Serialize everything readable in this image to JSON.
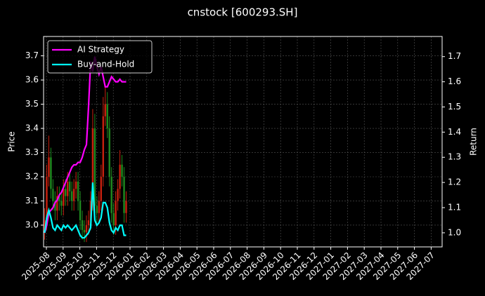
{
  "chart_data": {
    "type": "candlestick",
    "title": "cnstock [600293.SH]",
    "ylabel": "Price",
    "y2label": "Return",
    "ylim": [
      2.91,
      3.78
    ],
    "yticks": [
      {
        "value": 3.0,
        "label": "3.0"
      },
      3.1,
      3.2,
      3.3,
      3.4,
      3.5,
      3.6,
      3.7
    ],
    "y2lim": [
      0.944,
      1.78
    ],
    "y2ticks": [
      {
        "value": 1.0,
        "label": "1.0"
      },
      1.1,
      1.2,
      1.3,
      1.4,
      1.5,
      1.6,
      1.7
    ],
    "xticks": [
      "2025-08",
      "2025-09",
      "2025-10",
      "2025-11",
      "2025-12",
      "2026-01",
      "2026-02",
      "2026-03",
      "2026-04",
      "2026-05",
      "2026-06",
      "2026-07",
      "2026-08",
      "2026-09",
      "2026-10",
      "2026-11",
      "2026-12",
      "2027-01",
      "2027-02",
      "2027-03",
      "2027-04",
      "2027-05",
      "2027-06",
      "2027-07"
    ],
    "grid": true,
    "legend_loc": "upper left",
    "up_color": "#c8200e",
    "down_color": "#1f8a1f",
    "open": [
      2.98,
      3.02,
      3.2,
      3.28,
      3.15,
      3.1,
      3.06,
      3.12,
      3.1,
      3.08,
      3.15,
      3.12,
      3.18,
      3.14,
      3.1,
      3.15,
      3.18,
      3.1,
      3.02,
      2.98,
      2.97,
      3.0,
      3.02,
      3.1,
      3.4,
      3.08,
      3.05,
      3.1,
      3.2,
      3.45,
      3.5,
      3.4,
      3.2,
      3.05,
      3.0,
      3.1,
      3.15,
      3.25,
      3.2,
      3.05
    ],
    "high": [
      3.07,
      3.25,
      3.37,
      3.32,
      3.19,
      3.14,
      3.16,
      3.16,
      3.14,
      3.19,
      3.19,
      3.22,
      3.22,
      3.18,
      3.19,
      3.22,
      3.22,
      3.14,
      3.06,
      3.02,
      3.04,
      3.06,
      3.14,
      3.48,
      3.46,
      3.12,
      3.14,
      3.25,
      3.53,
      3.57,
      3.55,
      3.45,
      3.24,
      3.09,
      3.14,
      3.19,
      3.31,
      3.29,
      3.24,
      3.14
    ],
    "low": [
      2.94,
      2.98,
      3.16,
      3.11,
      3.06,
      3.02,
      3.02,
      3.06,
      3.04,
      3.04,
      3.08,
      3.08,
      3.1,
      3.06,
      3.06,
      3.11,
      3.06,
      2.98,
      2.94,
      2.93,
      2.93,
      2.96,
      2.98,
      3.06,
      3.04,
      3.01,
      3.01,
      3.06,
      3.16,
      3.41,
      3.36,
      3.16,
      3.01,
      2.96,
      2.96,
      3.06,
      3.11,
      3.16,
      3.01,
      3.01
    ],
    "close": [
      3.02,
      3.2,
      3.28,
      3.15,
      3.1,
      3.06,
      3.12,
      3.1,
      3.08,
      3.15,
      3.12,
      3.18,
      3.14,
      3.1,
      3.15,
      3.18,
      3.1,
      3.02,
      2.98,
      2.97,
      3.0,
      3.02,
      3.1,
      3.4,
      3.08,
      3.05,
      3.1,
      3.2,
      3.45,
      3.5,
      3.4,
      3.2,
      3.05,
      3.0,
      3.1,
      3.15,
      3.25,
      3.2,
      3.05,
      3.1
    ],
    "series": [
      {
        "name": "AI Strategy",
        "color": "#ff00ff",
        "axis": "y2",
        "values": [
          1.0,
          1.03,
          1.08,
          1.09,
          1.1,
          1.12,
          1.13,
          1.15,
          1.16,
          1.18,
          1.2,
          1.22,
          1.24,
          1.26,
          1.27,
          1.27,
          1.28,
          1.28,
          1.3,
          1.33,
          1.35,
          1.5,
          1.68,
          1.64,
          1.7,
          1.66,
          1.63,
          1.66,
          1.62,
          1.58,
          1.58,
          1.6,
          1.62,
          1.61,
          1.6,
          1.6,
          1.61,
          1.6,
          1.6,
          1.6
        ]
      },
      {
        "name": "Buy-and-Hold",
        "color": "#00ffff",
        "axis": "y2",
        "values": [
          1.0,
          1.06,
          1.09,
          1.06,
          1.02,
          1.01,
          1.03,
          1.02,
          1.01,
          1.03,
          1.02,
          1.03,
          1.02,
          1.01,
          1.02,
          1.03,
          1.01,
          0.99,
          0.98,
          0.98,
          0.99,
          1.0,
          1.02,
          1.2,
          1.05,
          1.03,
          1.04,
          1.06,
          1.12,
          1.12,
          1.1,
          1.04,
          1.01,
          1.0,
          1.02,
          1.01,
          1.03,
          1.03,
          0.99,
          0.99
        ]
      }
    ]
  }
}
